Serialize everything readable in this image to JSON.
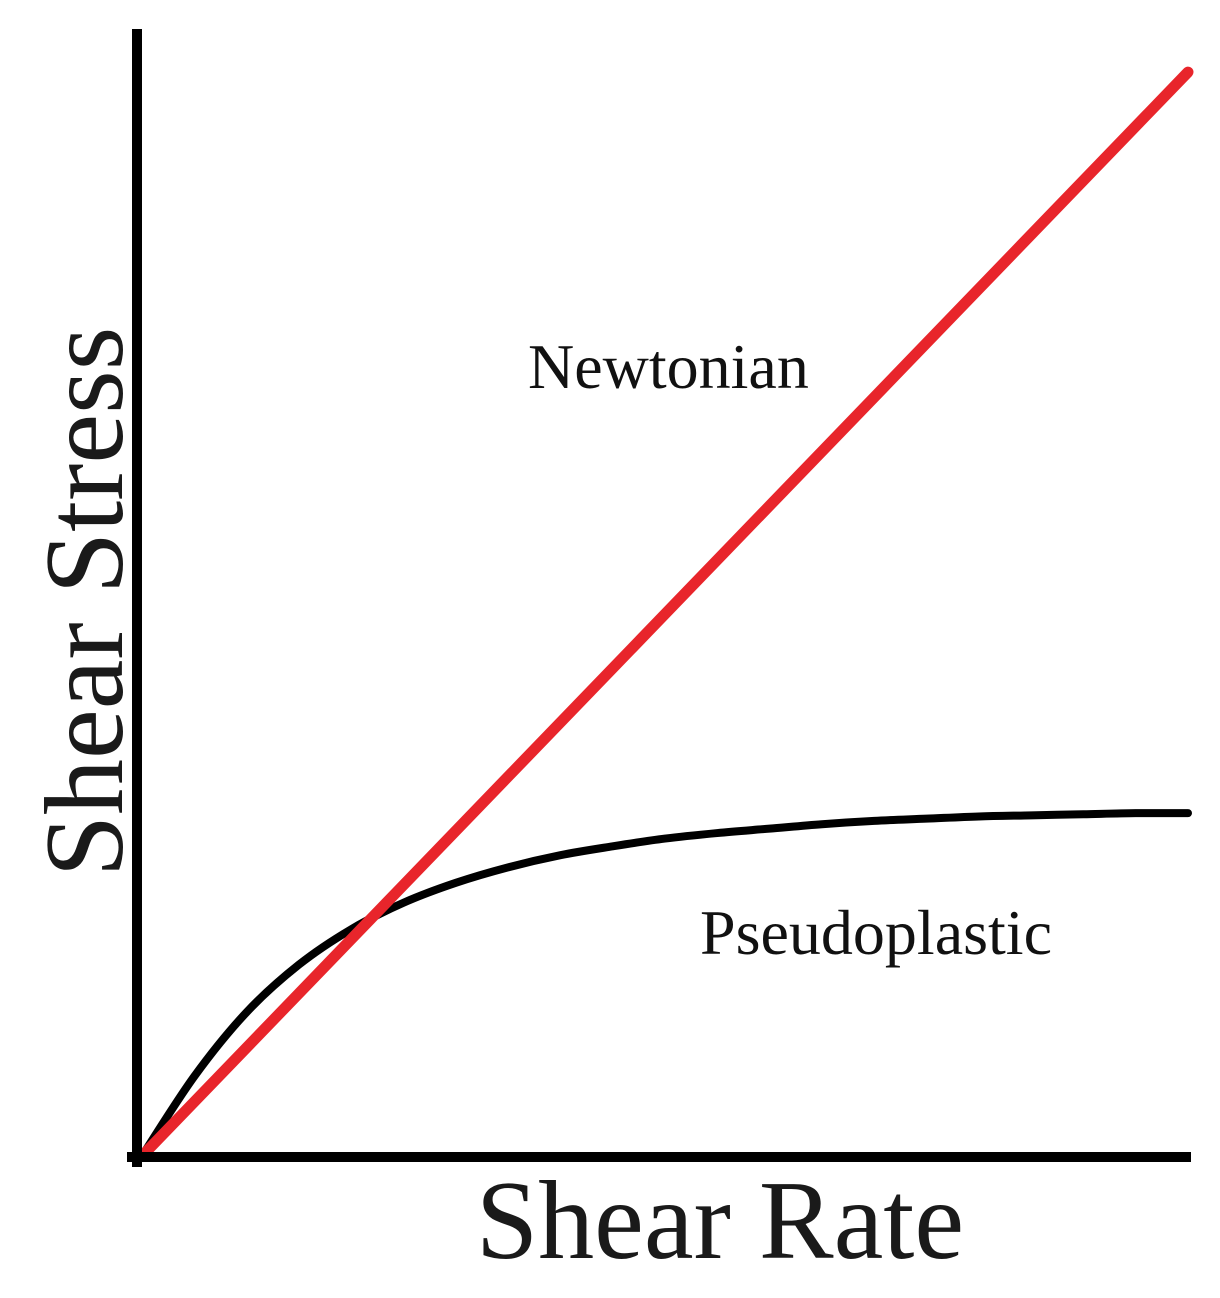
{
  "chart_data": {
    "type": "line",
    "title": "",
    "xlabel": "Shear Rate",
    "ylabel": "Shear Stress",
    "xlim": [
      0,
      10
    ],
    "ylim": [
      0,
      10
    ],
    "grid": false,
    "legend": "none",
    "ticks": false,
    "series": [
      {
        "name": "Newtonian",
        "color": "#e8252b",
        "x": [
          0,
          10
        ],
        "y": [
          0,
          9.8
        ]
      },
      {
        "name": "Pseudoplastic",
        "color": "#000000",
        "x": [
          0,
          0.5,
          1,
          1.5,
          2,
          2.5,
          3,
          3.5,
          4,
          4.5,
          5,
          5.5,
          6,
          6.5,
          7,
          7.5,
          8,
          8.5,
          9,
          9.5,
          10
        ],
        "y": [
          0,
          0.72,
          1.3,
          1.73,
          2.05,
          2.29,
          2.47,
          2.61,
          2.72,
          2.8,
          2.87,
          2.92,
          2.96,
          3.0,
          3.03,
          3.05,
          3.07,
          3.08,
          3.09,
          3.1,
          3.1
        ]
      }
    ]
  }
}
